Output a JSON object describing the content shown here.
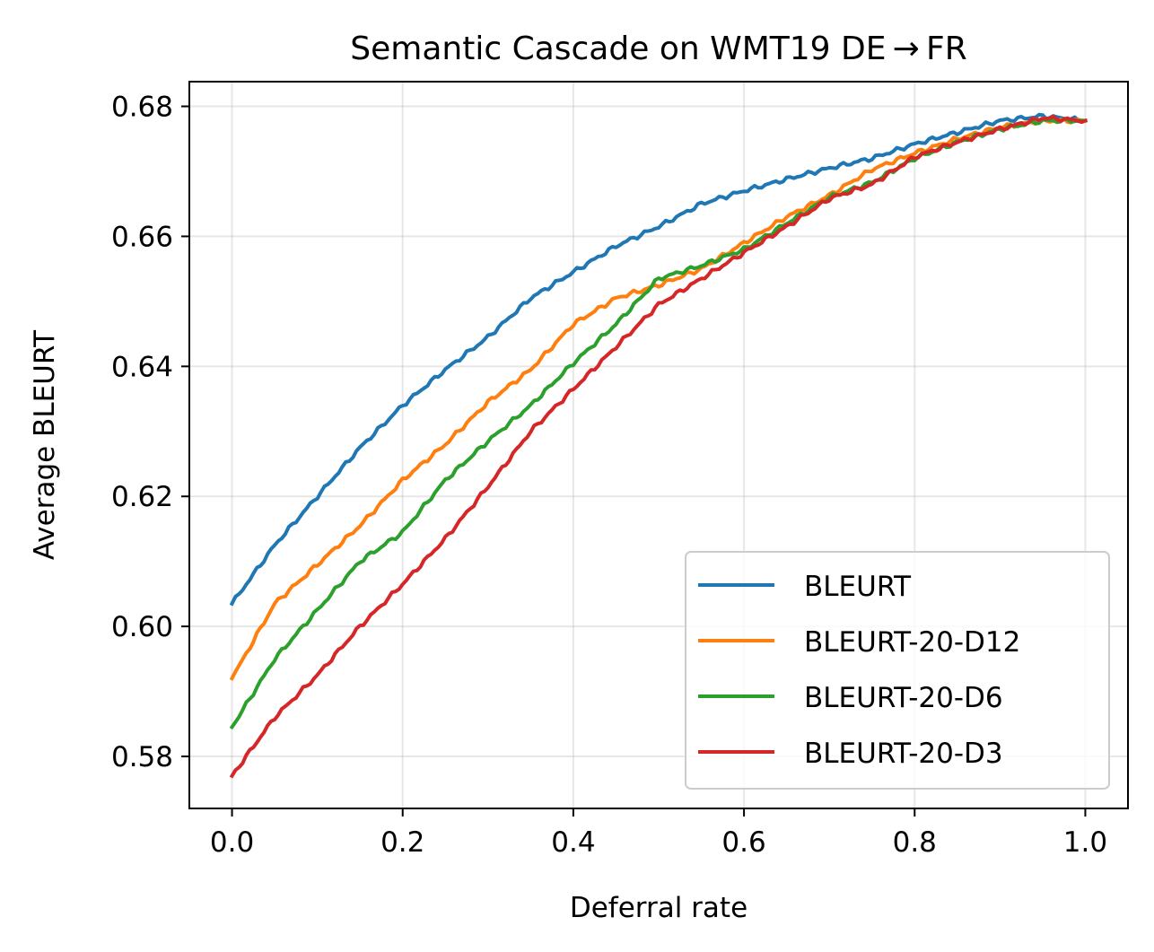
{
  "chart_data": {
    "type": "line",
    "title": "Semantic Cascade on WMT19 DE → FR",
    "xlabel": "Deferral rate",
    "ylabel": "Average BLEURT",
    "xlim": [
      -0.05,
      1.05
    ],
    "ylim": [
      0.572,
      0.6838
    ],
    "xticks": [
      0.0,
      0.2,
      0.4,
      0.6,
      0.8,
      1.0
    ],
    "xtick_labels": [
      "0.0",
      "0.2",
      "0.4",
      "0.6",
      "0.8",
      "1.0"
    ],
    "yticks": [
      0.58,
      0.6,
      0.62,
      0.64,
      0.66,
      0.68
    ],
    "ytick_labels": [
      "0.58",
      "0.60",
      "0.62",
      "0.64",
      "0.66",
      "0.68"
    ],
    "grid": true,
    "legend_position": "lower-right",
    "x": [
      0.0,
      0.05,
      0.1,
      0.15,
      0.2,
      0.25,
      0.3,
      0.35,
      0.4,
      0.45,
      0.5,
      0.55,
      0.6,
      0.65,
      0.7,
      0.75,
      0.8,
      0.85,
      0.9,
      0.95,
      1.0
    ],
    "series": [
      {
        "name": "BLEURT",
        "color": "#1f77b4",
        "values": [
          0.6035,
          0.6125,
          0.62,
          0.6275,
          0.634,
          0.6395,
          0.6445,
          0.6505,
          0.6545,
          0.6585,
          0.6615,
          0.665,
          0.667,
          0.6688,
          0.6705,
          0.672,
          0.6742,
          0.676,
          0.6778,
          0.6785,
          0.6778
        ]
      },
      {
        "name": "BLEURT-20-D12",
        "color": "#ff7f0e",
        "values": [
          0.592,
          0.6035,
          0.6095,
          0.6155,
          0.6225,
          0.628,
          0.6345,
          0.6395,
          0.6465,
          0.6505,
          0.6525,
          0.655,
          0.659,
          0.663,
          0.6663,
          0.6703,
          0.6728,
          0.675,
          0.6768,
          0.6778,
          0.6778
        ]
      },
      {
        "name": "BLEURT-20-D6",
        "color": "#2ca02c",
        "values": [
          0.5845,
          0.595,
          0.6025,
          0.61,
          0.6145,
          0.6225,
          0.6285,
          0.634,
          0.6405,
          0.6465,
          0.6535,
          0.6555,
          0.658,
          0.662,
          0.666,
          0.6683,
          0.672,
          0.6745,
          0.6765,
          0.6778,
          0.6778
        ]
      },
      {
        "name": "BLEURT-20-D3",
        "color": "#d62728",
        "values": [
          0.577,
          0.586,
          0.5925,
          0.6,
          0.6065,
          0.6135,
          0.6215,
          0.63,
          0.6365,
          0.643,
          0.6495,
          0.6535,
          0.6575,
          0.6615,
          0.6658,
          0.668,
          0.6722,
          0.6745,
          0.6765,
          0.6782,
          0.6778
        ]
      }
    ]
  }
}
